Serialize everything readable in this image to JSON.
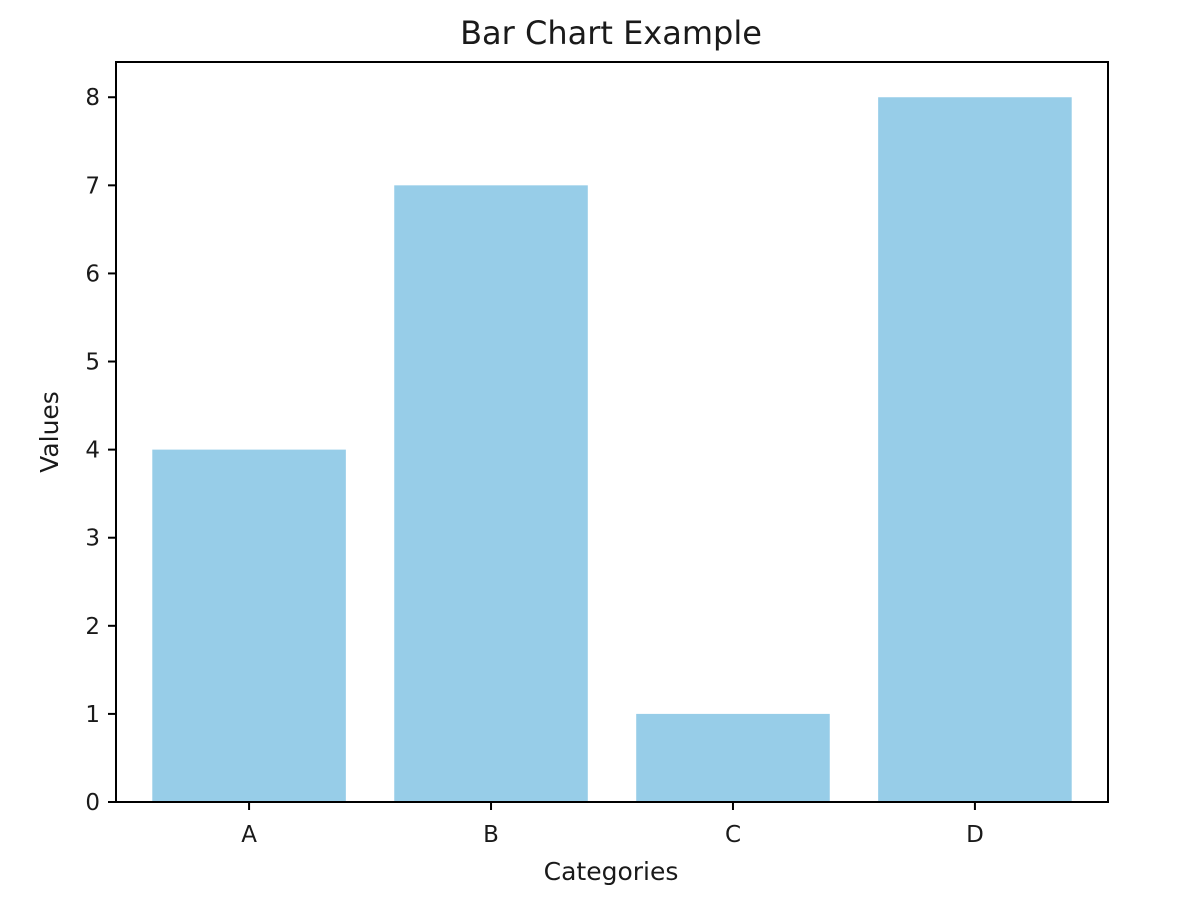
{
  "chart_data": {
    "type": "bar",
    "title": "Bar Chart Example",
    "xlabel": "Categories",
    "ylabel": "Values",
    "categories": [
      "A",
      "B",
      "C",
      "D"
    ],
    "values": [
      4,
      7,
      1,
      8
    ],
    "ylim": [
      0,
      8.4
    ],
    "yticks": [
      "0",
      "1",
      "2",
      "3",
      "4",
      "5",
      "6",
      "7",
      "8"
    ],
    "bar_color": "#97cde8",
    "grid": false
  }
}
